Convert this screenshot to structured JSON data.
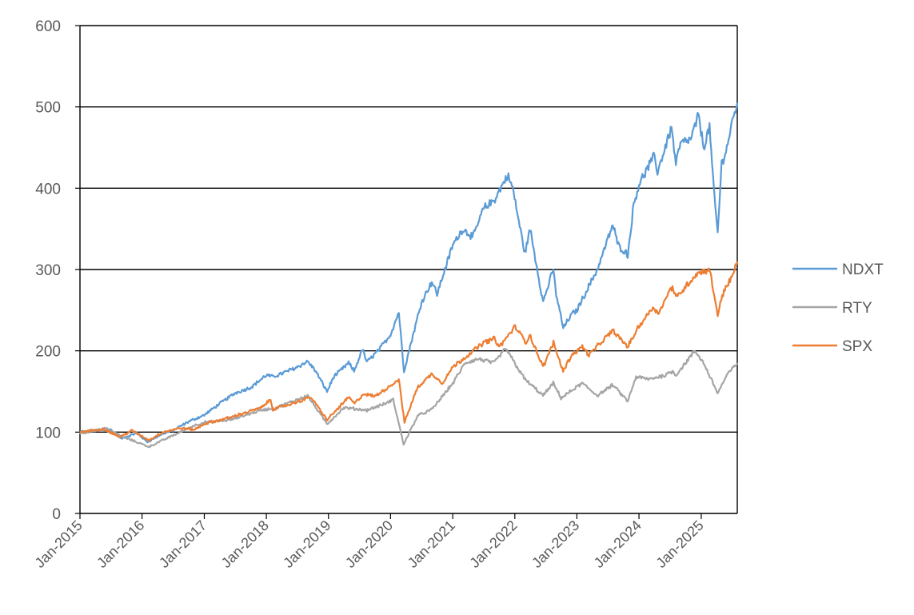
{
  "chart_data": {
    "type": "line",
    "title": "",
    "xlabel": "",
    "ylabel": "",
    "xlim": [
      "2015-01-01",
      "2025-08-01"
    ],
    "ylim": [
      0,
      600
    ],
    "yticks": [
      0,
      100,
      200,
      300,
      400,
      500,
      600
    ],
    "xticks": [
      "Jan-2015",
      "Jan-2016",
      "Jan-2017",
      "Jan-2018",
      "Jan-2019",
      "Jan-2020",
      "Jan-2021",
      "Jan-2022",
      "Jan-2023",
      "Jan-2024",
      "Jan-2025"
    ],
    "grid": "horizontal",
    "legend_position": "right",
    "series": [
      {
        "name": "NDXT",
        "color": "#5B9BD5",
        "x": [
          "2015-01-01",
          "2015-04-01",
          "2015-07-01",
          "2015-09-01",
          "2015-12-01",
          "2016-02-01",
          "2016-05-01",
          "2016-07-01",
          "2016-10-01",
          "2017-01-01",
          "2017-04-01",
          "2017-07-01",
          "2017-10-01",
          "2018-01-01",
          "2018-02-08",
          "2018-04-01",
          "2018-07-01",
          "2018-09-01",
          "2018-10-15",
          "2018-12-24",
          "2019-02-01",
          "2019-04-30",
          "2019-06-01",
          "2019-07-20",
          "2019-08-15",
          "2019-11-01",
          "2020-01-01",
          "2020-02-19",
          "2020-03-20",
          "2020-05-01",
          "2020-07-01",
          "2020-08-31",
          "2020-10-01",
          "2021-01-01",
          "2021-03-01",
          "2021-05-01",
          "2021-07-01",
          "2021-09-01",
          "2021-11-19",
          "2021-12-20",
          "2022-01-15",
          "2022-03-01",
          "2022-04-01",
          "2022-06-16",
          "2022-08-15",
          "2022-09-01",
          "2022-10-13",
          "2022-12-01",
          "2023-01-01",
          "2023-03-01",
          "2023-05-01",
          "2023-07-31",
          "2023-09-01",
          "2023-10-27",
          "2023-12-01",
          "2024-01-01",
          "2024-04-01",
          "2024-04-19",
          "2024-07-10",
          "2024-08-05",
          "2024-09-01",
          "2024-11-01",
          "2024-12-16",
          "2025-01-15",
          "2025-02-19",
          "2025-03-15",
          "2025-04-08",
          "2025-05-01",
          "2025-06-01",
          "2025-07-01",
          "2025-08-01"
        ],
        "values": [
          100,
          102,
          103,
          92,
          99,
          88,
          98,
          102,
          113,
          121,
          135,
          148,
          155,
          170,
          168,
          172,
          180,
          187,
          176,
          150,
          168,
          185,
          175,
          202,
          186,
          203,
          220,
          248,
          175,
          210,
          260,
          285,
          270,
          330,
          350,
          340,
          375,
          385,
          416,
          400,
          370,
          320,
          350,
          260,
          300,
          270,
          228,
          245,
          250,
          275,
          300,
          355,
          330,
          318,
          380,
          405,
          440,
          420,
          475,
          430,
          455,
          460,
          490,
          450,
          475,
          400,
          345,
          430,
          450,
          480,
          505
        ]
      },
      {
        "name": "RTY",
        "color": "#A5A5A5",
        "x": [
          "2015-01-01",
          "2015-06-01",
          "2015-09-01",
          "2016-02-11",
          "2016-06-01",
          "2016-11-01",
          "2017-01-01",
          "2017-06-01",
          "2017-12-01",
          "2018-03-01",
          "2018-08-31",
          "2018-12-24",
          "2019-04-01",
          "2019-08-15",
          "2019-12-01",
          "2020-01-17",
          "2020-03-18",
          "2020-06-08",
          "2020-09-01",
          "2021-01-01",
          "2021-03-15",
          "2021-06-01",
          "2021-09-01",
          "2021-11-08",
          "2022-01-15",
          "2022-03-01",
          "2022-06-16",
          "2022-08-15",
          "2022-09-30",
          "2023-02-01",
          "2023-05-01",
          "2023-07-31",
          "2023-10-27",
          "2023-12-15",
          "2024-03-01",
          "2024-06-01",
          "2024-07-16",
          "2024-08-05",
          "2024-11-25",
          "2025-01-15",
          "2025-04-08",
          "2025-06-01",
          "2025-08-01"
        ],
        "values": [
          98,
          105,
          95,
          82,
          93,
          108,
          112,
          115,
          127,
          130,
          145,
          110,
          130,
          127,
          135,
          140,
          85,
          120,
          128,
          160,
          185,
          190,
          185,
          203,
          180,
          165,
          145,
          160,
          142,
          160,
          145,
          158,
          138,
          168,
          165,
          170,
          175,
          170,
          200,
          185,
          148,
          170,
          185
        ]
      },
      {
        "name": "SPX",
        "color": "#ED7D31",
        "x": [
          "2015-01-01",
          "2015-05-20",
          "2015-08-25",
          "2015-11-01",
          "2016-02-11",
          "2016-05-01",
          "2016-08-15",
          "2016-11-04",
          "2017-01-01",
          "2017-06-01",
          "2017-12-01",
          "2018-01-26",
          "2018-02-08",
          "2018-06-01",
          "2018-09-20",
          "2018-12-24",
          "2019-04-30",
          "2019-06-03",
          "2019-07-26",
          "2019-10-01",
          "2019-12-31",
          "2020-02-19",
          "2020-03-23",
          "2020-06-08",
          "2020-09-02",
          "2020-10-30",
          "2021-01-01",
          "2021-04-01",
          "2021-07-01",
          "2021-09-02",
          "2021-10-04",
          "2022-01-03",
          "2022-03-08",
          "2022-03-29",
          "2022-06-16",
          "2022-08-16",
          "2022-10-12",
          "2022-12-01",
          "2023-02-02",
          "2023-03-13",
          "2023-07-31",
          "2023-10-27",
          "2023-12-31",
          "2024-03-28",
          "2024-04-19",
          "2024-07-16",
          "2024-08-05",
          "2024-12-06",
          "2025-02-19",
          "2025-04-08",
          "2025-05-15",
          "2025-06-30",
          "2025-08-01"
        ],
        "values": [
          100,
          104,
          94,
          102,
          90,
          100,
          105,
          103,
          110,
          118,
          130,
          140,
          128,
          135,
          143,
          115,
          143,
          135,
          147,
          144,
          157,
          165,
          112,
          155,
          172,
          160,
          180,
          195,
          210,
          215,
          205,
          230,
          210,
          220,
          180,
          210,
          175,
          195,
          205,
          195,
          225,
          205,
          230,
          255,
          245,
          280,
          265,
          295,
          300,
          245,
          275,
          290,
          310
        ]
      }
    ]
  }
}
